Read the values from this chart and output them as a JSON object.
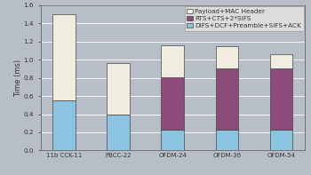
{
  "categories": [
    "11b CCK-11",
    "PBCC-22",
    "OFDM-24",
    "OFDM-36",
    "OFDM-54"
  ],
  "difs_values": [
    0.55,
    0.4,
    0.23,
    0.23,
    0.23
  ],
  "rts_values": [
    0.0,
    0.0,
    0.58,
    0.67,
    0.67
  ],
  "payload_values": [
    0.95,
    0.56,
    0.35,
    0.25,
    0.16
  ],
  "color_difs": "#8ac4e0",
  "color_rts": "#8b4c7c",
  "color_payload": "#f0ede0",
  "bar_edge_color": "#444444",
  "bar_width": 0.42,
  "ylim": [
    0.0,
    1.6
  ],
  "yticks": [
    0.0,
    0.2,
    0.4,
    0.6,
    0.8,
    1.0,
    1.2,
    1.4,
    1.6
  ],
  "ylabel": "Time (ms)",
  "legend_labels": [
    "Payload+MAC Header",
    "RTS+CTS+2*SIFS",
    "DIFS+DCF+Preamble+SIFS+ACK"
  ],
  "background_color": "#b8bec8",
  "plot_bg_color": "#b8bec8",
  "grid_color": "#d0d5dc",
  "legend_fontsize": 5.2,
  "ylabel_fontsize": 6.0,
  "tick_fontsize": 5.2,
  "xtick_fontsize": 5.0
}
